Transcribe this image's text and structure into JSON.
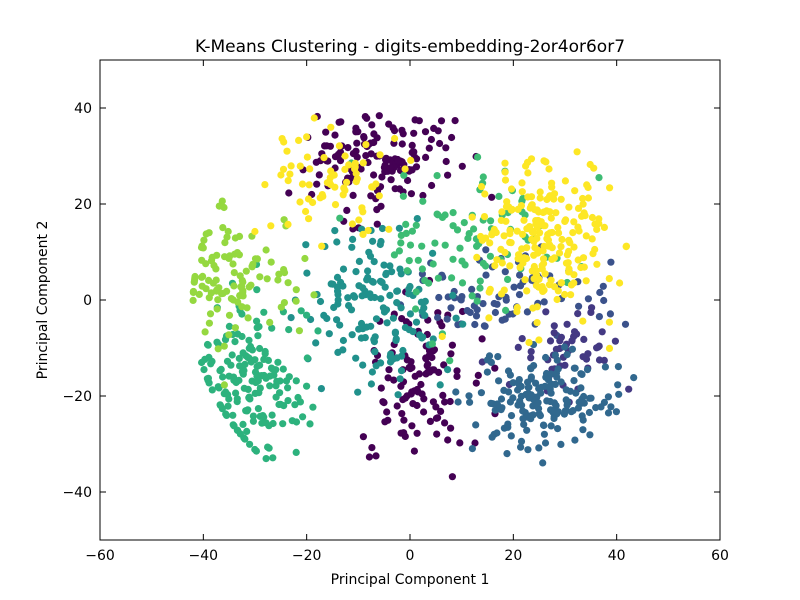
{
  "chart_data": {
    "type": "scatter",
    "title": "K-Means Clustering - digits-embedding-2or4or6or7",
    "xlabel": "Principal Component 1",
    "ylabel": "Principal Component 2",
    "xlim": [
      -60,
      60
    ],
    "ylim": [
      -50,
      50
    ],
    "xticks": [
      -60,
      -40,
      -20,
      0,
      20,
      40,
      60
    ],
    "yticks": [
      -40,
      -20,
      0,
      20,
      40
    ],
    "xtick_labels": [
      "−60",
      "−40",
      "−20",
      "0",
      "20",
      "40",
      "60"
    ],
    "ytick_labels": [
      "−40",
      "−20",
      "0",
      "20",
      "40"
    ],
    "grid": false,
    "legend": "none",
    "clusters": [
      {
        "color": "#440154",
        "center": [
          -6,
          29
        ],
        "spread": [
          7,
          5
        ],
        "count": 140
      },
      {
        "color": "#440154",
        "center": [
          1,
          -17
        ],
        "spread": [
          5,
          9
        ],
        "count": 110
      },
      {
        "color": "#3b528b",
        "center": [
          20,
          1
        ],
        "spread": [
          10,
          4
        ],
        "count": 80
      },
      {
        "color": "#443983",
        "center": [
          32,
          -10
        ],
        "spread": [
          6,
          5
        ],
        "count": 50
      },
      {
        "color": "#31688e",
        "center": [
          26,
          -21
        ],
        "spread": [
          7,
          5
        ],
        "count": 170
      },
      {
        "color": "#21918c",
        "center": [
          -7,
          -2
        ],
        "spread": [
          7,
          8
        ],
        "count": 150
      },
      {
        "color": "#2db27d",
        "center": [
          -30,
          -17
        ],
        "spread": [
          6,
          8
        ],
        "count": 170
      },
      {
        "color": "#3dbc74",
        "center": [
          12,
          12
        ],
        "spread": [
          9,
          10
        ],
        "count": 90
      },
      {
        "color": "#95d840",
        "center": [
          -35,
          5
        ],
        "spread": [
          6,
          7
        ],
        "count": 110
      },
      {
        "color": "#fde725",
        "center": [
          26,
          12
        ],
        "spread": [
          7,
          8
        ],
        "count": 220
      },
      {
        "color": "#fde725",
        "center": [
          -16,
          25
        ],
        "spread": [
          6,
          5
        ],
        "count": 70
      }
    ],
    "seed": 7
  }
}
